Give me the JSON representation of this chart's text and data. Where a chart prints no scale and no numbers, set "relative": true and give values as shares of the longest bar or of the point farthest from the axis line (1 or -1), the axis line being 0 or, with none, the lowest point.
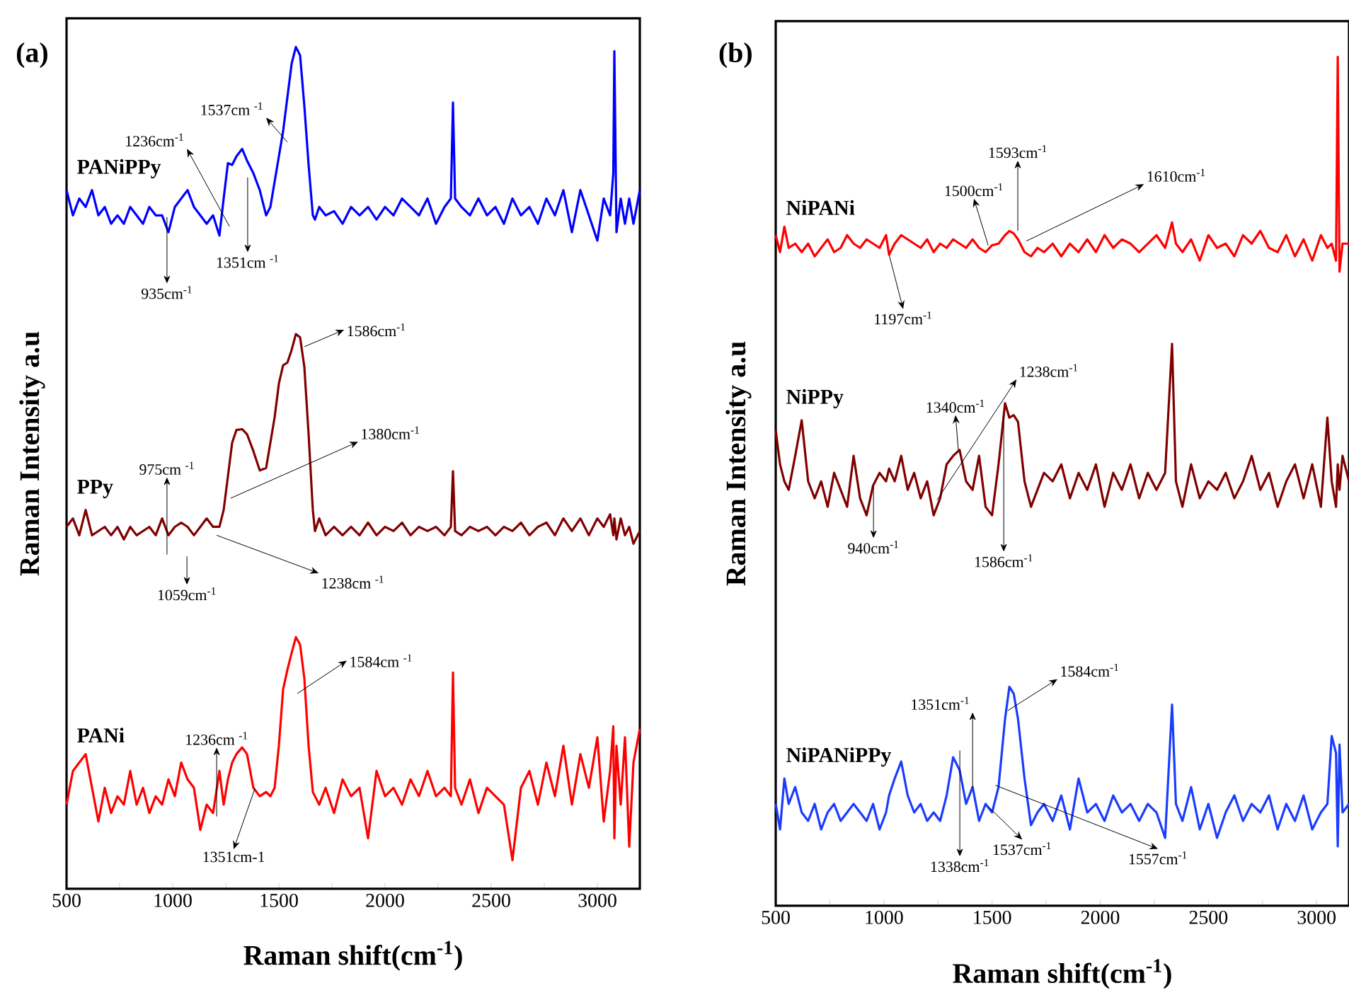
{
  "chart_data": [
    {
      "type": "line",
      "title": "(a)",
      "xlabel": "Raman shift(cm$^{-1}$)",
      "ylabel": "Raman Intensity a.u",
      "relative": true,
      "xlim": [
        500,
        3200
      ],
      "xticks": [
        500,
        {
          "value": 750,
          "label": null
        },
        1000,
        {
          "value": 1250,
          "label": null
        },
        1500,
        {
          "value": 1750,
          "label": null
        },
        2000,
        {
          "value": 2250,
          "label": null
        },
        2500,
        {
          "value": 2750,
          "label": null
        },
        3000
      ],
      "x": [
        500,
        530,
        560,
        590,
        620,
        650,
        680,
        710,
        740,
        770,
        800,
        830,
        860,
        890,
        920,
        950,
        980,
        1010,
        1040,
        1070,
        1100,
        1130,
        1160,
        1190,
        1220,
        1240,
        1260,
        1280,
        1300,
        1327,
        1350,
        1380,
        1410,
        1440,
        1460,
        1480,
        1500,
        1520,
        1540,
        1560,
        1580,
        1600,
        1620,
        1640,
        1660,
        1670,
        1690,
        1720,
        1760,
        1800,
        1840,
        1880,
        1920,
        1960,
        2000,
        2040,
        2080,
        2120,
        2160,
        2200,
        2240,
        2280,
        2310,
        2320,
        2330,
        2360,
        2400,
        2440,
        2480,
        2520,
        2560,
        2600,
        2640,
        2680,
        2720,
        2760,
        2800,
        2840,
        2880,
        2920,
        2960,
        3000,
        3030,
        3060,
        3075,
        3080,
        3090,
        3110,
        3130,
        3150,
        3170,
        3200
      ],
      "series": [
        {
          "name": "PANiPPy",
          "color": "#0000ff",
          "values": [
            0.83,
            0.8,
            0.82,
            0.81,
            0.83,
            0.8,
            0.81,
            0.79,
            0.8,
            0.79,
            0.81,
            0.8,
            0.79,
            0.81,
            0.8,
            0.8,
            0.78,
            0.81,
            0.82,
            0.83,
            0.81,
            0.8,
            0.79,
            0.8,
            0.776,
            0.82,
            0.862,
            0.86,
            0.87,
            0.879,
            0.865,
            0.85,
            0.83,
            0.8,
            0.81,
            0.84,
            0.87,
            0.9,
            0.94,
            0.98,
            1.0,
            0.99,
            0.93,
            0.86,
            0.8,
            0.795,
            0.81,
            0.8,
            0.805,
            0.79,
            0.81,
            0.8,
            0.81,
            0.795,
            0.81,
            0.8,
            0.82,
            0.81,
            0.8,
            0.82,
            0.79,
            0.81,
            0.82,
            0.934,
            0.82,
            0.81,
            0.8,
            0.82,
            0.8,
            0.81,
            0.79,
            0.82,
            0.8,
            0.81,
            0.79,
            0.82,
            0.8,
            0.83,
            0.78,
            0.83,
            0.8,
            0.77,
            0.82,
            0.8,
            0.85,
            0.995,
            0.78,
            0.82,
            0.79,
            0.82,
            0.79,
            0.83
          ]
        },
        {
          "name": "PPy",
          "color": "#800000",
          "values": [
            0.43,
            0.44,
            0.42,
            0.45,
            0.42,
            0.425,
            0.43,
            0.42,
            0.43,
            0.415,
            0.43,
            0.42,
            0.425,
            0.43,
            0.42,
            0.44,
            0.42,
            0.43,
            0.435,
            0.43,
            0.42,
            0.43,
            0.44,
            0.43,
            0.43,
            0.45,
            0.49,
            0.53,
            0.545,
            0.546,
            0.54,
            0.52,
            0.497,
            0.5,
            0.53,
            0.56,
            0.6,
            0.622,
            0.625,
            0.64,
            0.659,
            0.655,
            0.62,
            0.54,
            0.45,
            0.425,
            0.44,
            0.42,
            0.43,
            0.42,
            0.43,
            0.42,
            0.435,
            0.42,
            0.43,
            0.425,
            0.435,
            0.42,
            0.43,
            0.425,
            0.43,
            0.42,
            0.43,
            0.496,
            0.425,
            0.42,
            0.43,
            0.425,
            0.43,
            0.42,
            0.43,
            0.425,
            0.435,
            0.42,
            0.43,
            0.435,
            0.42,
            0.44,
            0.425,
            0.44,
            0.42,
            0.44,
            0.43,
            0.445,
            0.42,
            0.44,
            0.415,
            0.44,
            0.42,
            0.43,
            0.41,
            0.425
          ]
        },
        {
          "name": "PANi",
          "color": "#ff0000",
          "values": [
            0.1,
            0.14,
            0.15,
            0.16,
            0.12,
            0.08,
            0.12,
            0.09,
            0.11,
            0.1,
            0.14,
            0.1,
            0.12,
            0.09,
            0.11,
            0.1,
            0.13,
            0.11,
            0.15,
            0.13,
            0.12,
            0.07,
            0.1,
            0.09,
            0.14,
            0.1,
            0.13,
            0.15,
            0.16,
            0.168,
            0.16,
            0.12,
            0.11,
            0.115,
            0.11,
            0.12,
            0.17,
            0.237,
            0.26,
            0.28,
            0.299,
            0.29,
            0.25,
            0.17,
            0.115,
            0.11,
            0.1,
            0.12,
            0.09,
            0.13,
            0.11,
            0.12,
            0.06,
            0.14,
            0.11,
            0.12,
            0.1,
            0.13,
            0.11,
            0.14,
            0.11,
            0.12,
            0.11,
            0.257,
            0.12,
            0.1,
            0.13,
            0.09,
            0.12,
            0.11,
            0.1,
            0.034,
            0.12,
            0.14,
            0.1,
            0.15,
            0.11,
            0.17,
            0.1,
            0.16,
            0.12,
            0.18,
            0.08,
            0.14,
            0.193,
            0.06,
            0.17,
            0.1,
            0.18,
            0.05,
            0.15,
            0.19
          ]
        }
      ],
      "annotations": [
        {
          "text": "1537cm $^{-1}$",
          "x": 1540,
          "y": 0.887
        },
        "1236cm$^{-1}$",
        {
          "text": "1351cm $^{-1}$",
          "x": 1353,
          "y": 0.845
        },
        {
          "text": "935cm$^{-1}$",
          "x": 973,
          "y": 0.798
        },
        {
          "text": "1586cm$^{-1}$",
          "x": 1620,
          "y": 0.644
        },
        {
          "text": "1380cm$^{-1}$",
          "x": 1273,
          "y": 0.464
        },
        "975cm $^{-1}$",
        "1059cm$^{-1}$",
        "1238cm $^{-1}$",
        {
          "text": "1584cm $^{-1}$",
          "x": 1587,
          "y": 0.232
        },
        {
          "text": "1236cm $^{-1}$",
          "x": 1207,
          "y": 0.086
        },
        {
          "text": "1351cm-1",
          "x": 1387,
          "y": 0.119
        }
      ]
    },
    {
      "type": "line",
      "title": "(b)",
      "xlabel": "Raman shift(cm$^{-1}$)",
      "ylabel": "Raman Intensity a.u",
      "relative": true,
      "xlim": [
        500,
        3150
      ],
      "xticks": [
        500,
        {
          "value": 750,
          "label": null
        },
        1000,
        {
          "value": 1250,
          "label": null
        },
        1500,
        {
          "value": 1750,
          "label": null
        },
        2000,
        {
          "value": 2250,
          "label": null
        },
        2500,
        {
          "value": 2750,
          "label": null
        },
        3000
      ],
      "x": [
        500,
        520,
        540,
        560,
        590,
        620,
        650,
        680,
        710,
        740,
        770,
        800,
        830,
        860,
        890,
        920,
        950,
        980,
        1010,
        1024,
        1050,
        1080,
        1110,
        1140,
        1170,
        1200,
        1230,
        1260,
        1290,
        1320,
        1350,
        1380,
        1410,
        1440,
        1470,
        1500,
        1530,
        1560,
        1580,
        1600,
        1620,
        1650,
        1680,
        1710,
        1740,
        1780,
        1820,
        1860,
        1900,
        1940,
        1980,
        2020,
        2060,
        2100,
        2140,
        2180,
        2220,
        2260,
        2300,
        2332,
        2350,
        2380,
        2420,
        2460,
        2500,
        2540,
        2580,
        2620,
        2660,
        2700,
        2740,
        2780,
        2820,
        2860,
        2900,
        2940,
        2980,
        3020,
        3050,
        3070,
        3090,
        3098,
        3106,
        3120,
        3150
      ],
      "series": [
        {
          "name": "NiPANi",
          "color": "#ff0000",
          "values": [
            0.79,
            0.77,
            0.8,
            0.775,
            0.78,
            0.77,
            0.78,
            0.765,
            0.775,
            0.785,
            0.77,
            0.775,
            0.79,
            0.78,
            0.775,
            0.785,
            0.78,
            0.775,
            0.79,
            0.767,
            0.78,
            0.79,
            0.785,
            0.78,
            0.775,
            0.785,
            0.77,
            0.78,
            0.775,
            0.785,
            0.78,
            0.775,
            0.785,
            0.775,
            0.77,
            0.778,
            0.78,
            0.79,
            0.795,
            0.792,
            0.785,
            0.77,
            0.765,
            0.775,
            0.77,
            0.78,
            0.765,
            0.78,
            0.77,
            0.785,
            0.77,
            0.79,
            0.775,
            0.785,
            0.78,
            0.77,
            0.78,
            0.79,
            0.775,
            0.805,
            0.78,
            0.77,
            0.785,
            0.76,
            0.79,
            0.775,
            0.78,
            0.765,
            0.79,
            0.78,
            0.795,
            0.775,
            0.77,
            0.79,
            0.765,
            0.785,
            0.76,
            0.79,
            0.775,
            0.78,
            0.76,
            1.0,
            0.747,
            0.78,
            0.78
          ]
        },
        {
          "name": "NiPPy",
          "color": "#800000",
          "values": [
            0.56,
            0.52,
            0.5,
            0.49,
            0.53,
            0.572,
            0.5,
            0.48,
            0.5,
            0.47,
            0.51,
            0.49,
            0.47,
            0.53,
            0.48,
            0.46,
            0.495,
            0.51,
            0.5,
            0.515,
            0.5,
            0.53,
            0.49,
            0.51,
            0.48,
            0.5,
            0.46,
            0.48,
            0.52,
            0.53,
            0.537,
            0.5,
            0.49,
            0.53,
            0.47,
            0.46,
            0.52,
            0.592,
            0.575,
            0.578,
            0.57,
            0.5,
            0.47,
            0.49,
            0.51,
            0.5,
            0.52,
            0.48,
            0.51,
            0.49,
            0.52,
            0.47,
            0.51,
            0.49,
            0.52,
            0.48,
            0.51,
            0.49,
            0.51,
            0.662,
            0.5,
            0.47,
            0.52,
            0.48,
            0.5,
            0.49,
            0.51,
            0.48,
            0.5,
            0.53,
            0.49,
            0.51,
            0.47,
            0.5,
            0.52,
            0.48,
            0.52,
            0.47,
            0.575,
            0.5,
            0.47,
            0.52,
            0.49,
            0.53,
            0.5
          ]
        },
        {
          "name": "NiPANiPPy",
          "color": "#1a3cff",
          "values": [
            0.12,
            0.09,
            0.15,
            0.12,
            0.14,
            0.11,
            0.1,
            0.12,
            0.09,
            0.11,
            0.12,
            0.1,
            0.11,
            0.12,
            0.11,
            0.1,
            0.12,
            0.09,
            0.11,
            0.13,
            0.15,
            0.17,
            0.13,
            0.11,
            0.12,
            0.1,
            0.11,
            0.1,
            0.13,
            0.175,
            0.16,
            0.12,
            0.14,
            0.1,
            0.12,
            0.11,
            0.14,
            0.22,
            0.258,
            0.25,
            0.22,
            0.15,
            0.095,
            0.11,
            0.12,
            0.1,
            0.13,
            0.09,
            0.15,
            0.11,
            0.12,
            0.1,
            0.13,
            0.11,
            0.12,
            0.1,
            0.12,
            0.11,
            0.08,
            0.237,
            0.12,
            0.1,
            0.14,
            0.09,
            0.12,
            0.08,
            0.11,
            0.13,
            0.1,
            0.12,
            0.11,
            0.13,
            0.09,
            0.12,
            0.1,
            0.13,
            0.09,
            0.11,
            0.12,
            0.2,
            0.18,
            0.07,
            0.19,
            0.11,
            0.12
          ]
        }
      ],
      "annotations": [
        {
          "text": "1500cm$^{-1}$",
          "x": 1482,
          "y": 0.778
        },
        {
          "text": "1593cm$^{-1}$",
          "x": 1619,
          "y": 0.795
        },
        {
          "text": "1610cm$^{-1}$",
          "x": 1658,
          "y": 0.783
        },
        {
          "text": "1197cm$^{-1}$",
          "x": 1024,
          "y": 0.767
        },
        {
          "text": "1340cm$^{-1}$",
          "x": 1344,
          "y": 0.537
        },
        {
          "text": "1238cm$^{-1}$",
          "x": 1246,
          "y": 0.478
        },
        {
          "text": "940cm$^{-1}$",
          "x": 952,
          "y": 0.495
        },
        {
          "text": "1586cm$^{-1}$",
          "x": 1554,
          "y": 0.578
        },
        {
          "text": "1584cm$^{-1}$",
          "x": 1573,
          "y": 0.23
        },
        {
          "text": "1351cm$^{-1}$",
          "x": 1410,
          "y": 0.138
        },
        "1338cm$^{-1}$",
        {
          "text": "1537cm$^{-1}$",
          "x": 1482,
          "y": 0.117
        },
        {
          "text": "1557cm$^{-1}$",
          "x": 1515,
          "y": 0.142
        }
      ]
    }
  ]
}
